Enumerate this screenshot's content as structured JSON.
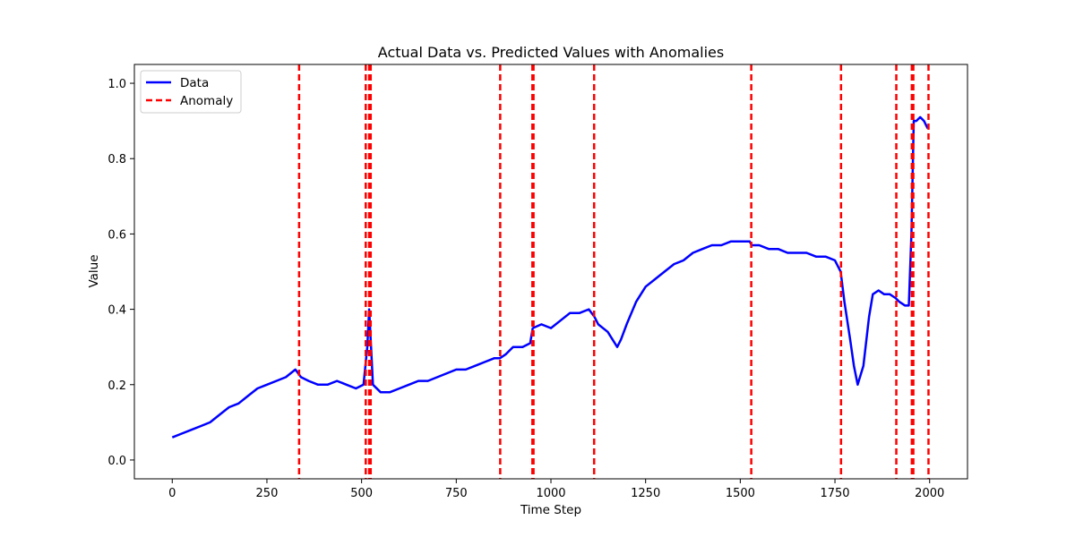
{
  "chart_data": {
    "type": "line",
    "title": "Actual Data vs. Predicted Values with Anomalies",
    "xlabel": "Time Step",
    "ylabel": "Value",
    "xlim": [
      -100,
      2100
    ],
    "ylim": [
      -0.05,
      1.05
    ],
    "xticks": [
      0,
      250,
      500,
      750,
      1000,
      1250,
      1500,
      1750,
      2000
    ],
    "yticks": [
      0.0,
      0.2,
      0.4,
      0.6,
      0.8,
      1.0
    ],
    "xtick_labels": [
      "0",
      "250",
      "500",
      "750",
      "1000",
      "1250",
      "1500",
      "1750",
      "2000"
    ],
    "ytick_labels": [
      "0.0",
      "0.2",
      "0.4",
      "0.6",
      "0.8",
      "1.0"
    ],
    "grid": false,
    "legend": {
      "position": "upper-left",
      "entries": [
        {
          "label": "Data",
          "style": "solid",
          "color": "#0000ff"
        },
        {
          "label": "Anomaly",
          "style": "dashed",
          "color": "#ff0000"
        }
      ]
    },
    "series": [
      {
        "name": "Data",
        "color": "#0000ff",
        "x": [
          0,
          25,
          50,
          75,
          100,
          125,
          150,
          175,
          200,
          225,
          250,
          275,
          300,
          325,
          340,
          360,
          385,
          410,
          435,
          460,
          485,
          505,
          515,
          520,
          530,
          550,
          575,
          600,
          625,
          650,
          675,
          700,
          725,
          750,
          775,
          800,
          825,
          850,
          865,
          880,
          900,
          925,
          945,
          952,
          975,
          1000,
          1025,
          1050,
          1075,
          1100,
          1115,
          1125,
          1150,
          1175,
          1185,
          1200,
          1225,
          1250,
          1275,
          1300,
          1325,
          1350,
          1375,
          1400,
          1425,
          1450,
          1475,
          1500,
          1525,
          1530,
          1550,
          1575,
          1600,
          1625,
          1650,
          1675,
          1700,
          1725,
          1750,
          1765,
          1775,
          1790,
          1800,
          1810,
          1825,
          1840,
          1850,
          1865,
          1880,
          1895,
          1910,
          1920,
          1935,
          1945,
          1952,
          1958,
          1965,
          1975,
          1985,
          1995
        ],
        "values": [
          0.06,
          0.07,
          0.08,
          0.09,
          0.1,
          0.12,
          0.14,
          0.15,
          0.17,
          0.19,
          0.2,
          0.21,
          0.22,
          0.24,
          0.22,
          0.21,
          0.2,
          0.2,
          0.21,
          0.2,
          0.19,
          0.2,
          0.3,
          0.4,
          0.2,
          0.18,
          0.18,
          0.19,
          0.2,
          0.21,
          0.21,
          0.22,
          0.23,
          0.24,
          0.24,
          0.25,
          0.26,
          0.27,
          0.27,
          0.28,
          0.3,
          0.3,
          0.31,
          0.35,
          0.36,
          0.35,
          0.37,
          0.39,
          0.39,
          0.4,
          0.38,
          0.36,
          0.34,
          0.3,
          0.32,
          0.36,
          0.42,
          0.46,
          0.48,
          0.5,
          0.52,
          0.53,
          0.55,
          0.56,
          0.57,
          0.57,
          0.58,
          0.58,
          0.58,
          0.57,
          0.57,
          0.56,
          0.56,
          0.55,
          0.55,
          0.55,
          0.54,
          0.54,
          0.53,
          0.5,
          0.42,
          0.32,
          0.25,
          0.2,
          0.25,
          0.38,
          0.44,
          0.45,
          0.44,
          0.44,
          0.43,
          0.42,
          0.41,
          0.41,
          0.6,
          0.9,
          0.9,
          0.91,
          0.9,
          0.88
        ]
      }
    ],
    "anomalies": [
      335,
      511,
      520,
      524,
      866,
      951,
      954,
      1114,
      1529,
      1766,
      1912,
      1953,
      1957,
      1997
    ]
  }
}
